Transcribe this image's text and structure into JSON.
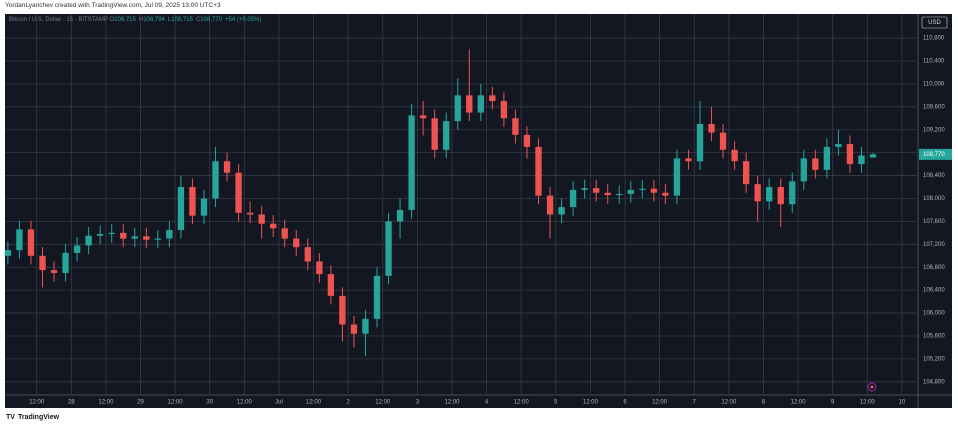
{
  "header": {
    "attribution": "YordanLyanchev created with TradingView.com, Jul 09, 2025 13:00 UTC+3",
    "symbol": "Bitcoin / U.S. Dollar · 15 · BITSTAMP",
    "ohlc": [
      {
        "key": "O",
        "value": "108,715"
      },
      {
        "key": "H",
        "value": "108,794"
      },
      {
        "key": "L",
        "value": "108,715"
      },
      {
        "key": "C",
        "value": "108,770"
      }
    ],
    "change": "+54 (+0.05%)",
    "currency": "USD"
  },
  "chart_data": {
    "type": "candlestick",
    "up_color": "#26a69a",
    "down_color": "#ef5350",
    "grid": true,
    "x": [
      2,
      6,
      10,
      14,
      18,
      22,
      26,
      30,
      34,
      38,
      42,
      46,
      50,
      54,
      58,
      62,
      66,
      70,
      74,
      78,
      82,
      86,
      90,
      94,
      98,
      102,
      106,
      110,
      114,
      118,
      122,
      126,
      130,
      134,
      138,
      142,
      146,
      150,
      154,
      158,
      162,
      166,
      170,
      174,
      178,
      182,
      186,
      190,
      194,
      198,
      202,
      206,
      210,
      214,
      218,
      222,
      226,
      230,
      234,
      238,
      242,
      246,
      250,
      254,
      258,
      262,
      266,
      270,
      274,
      278,
      282,
      286,
      290,
      294,
      298,
      302
    ],
    "open": [
      107000,
      107100,
      107460,
      107000,
      106750,
      106700,
      107050,
      107180,
      107350,
      107380,
      107400,
      107300,
      107340,
      107280,
      107300,
      107450,
      108200,
      107700,
      108000,
      108650,
      108450,
      107750,
      107720,
      107560,
      107480,
      107300,
      107150,
      106900,
      106680,
      106300,
      105800,
      105640,
      105900,
      106650,
      107600,
      107800,
      109450,
      109400,
      108850,
      109350,
      109800,
      109500,
      109800,
      109700,
      109400,
      109110,
      108900,
      108050,
      107720,
      107850,
      108150,
      108180,
      108100,
      108060,
      108080,
      108150,
      108170,
      108100,
      108050,
      108700,
      108650,
      109300,
      109150,
      108850,
      108650,
      108250,
      107950,
      108200,
      107900,
      108300,
      108700,
      108500,
      108900,
      108950,
      108600,
      108715
    ],
    "high": [
      107250,
      107610,
      107610,
      107150,
      106900,
      107200,
      107330,
      107500,
      107530,
      107550,
      107550,
      107490,
      107490,
      107450,
      107600,
      108400,
      108350,
      108150,
      108900,
      108800,
      108600,
      107950,
      107870,
      107710,
      107630,
      107450,
      107300,
      107050,
      106830,
      106450,
      105950,
      106050,
      106800,
      107750,
      108000,
      109650,
      109700,
      109550,
      109500,
      110100,
      110600,
      110000,
      109950,
      109850,
      109550,
      109260,
      109050,
      108200,
      108000,
      108300,
      108330,
      108330,
      108250,
      108230,
      108300,
      108320,
      108320,
      108250,
      108850,
      108850,
      109700,
      109600,
      109300,
      109000,
      108800,
      108400,
      108350,
      108350,
      108450,
      108850,
      108850,
      109050,
      109200,
      109100,
      108900,
      108794
    ],
    "low": [
      106850,
      106950,
      106850,
      106450,
      106550,
      106550,
      106900,
      107030,
      107200,
      107230,
      107150,
      107150,
      107130,
      107130,
      107150,
      107300,
      107550,
      107550,
      107850,
      108300,
      107600,
      107570,
      107300,
      107330,
      107150,
      107000,
      106750,
      106530,
      106150,
      105500,
      105400,
      105250,
      105750,
      106500,
      107300,
      107650,
      109100,
      108700,
      108700,
      109200,
      109350,
      109350,
      109550,
      109250,
      108960,
      108700,
      107900,
      107300,
      107570,
      107700,
      108000,
      107950,
      107910,
      107910,
      107930,
      108000,
      107950,
      107900,
      107900,
      108500,
      108500,
      109000,
      108700,
      108500,
      108100,
      107600,
      107800,
      107500,
      107750,
      108150,
      108350,
      108350,
      108750,
      108450,
      108450,
      108715
    ],
    "close": [
      107100,
      107460,
      107000,
      106750,
      106700,
      107050,
      107180,
      107350,
      107380,
      107400,
      107300,
      107340,
      107280,
      107300,
      107450,
      108200,
      107700,
      108000,
      108650,
      108450,
      107750,
      107720,
      107560,
      107480,
      107300,
      107150,
      106900,
      106680,
      106300,
      105800,
      105640,
      105900,
      106650,
      107600,
      107800,
      109450,
      109400,
      108850,
      109350,
      109800,
      109500,
      109800,
      109700,
      109400,
      109110,
      108900,
      108050,
      107720,
      107850,
      108150,
      108180,
      108100,
      108060,
      108080,
      108150,
      108170,
      108100,
      108050,
      108700,
      108650,
      109300,
      109150,
      108850,
      108650,
      108250,
      107950,
      108200,
      107900,
      108300,
      108700,
      108500,
      108900,
      108950,
      108600,
      108750,
      108770
    ],
    "xlim": [
      1,
      317.6
    ],
    "ylim": [
      104570,
      111220
    ],
    "xticks": [
      {
        "value": 12,
        "label": "12:00"
      },
      {
        "value": 24,
        "label": "28"
      },
      {
        "value": 36,
        "label": "12:00"
      },
      {
        "value": 48,
        "label": "29"
      },
      {
        "value": 60,
        "label": "12:00"
      },
      {
        "value": 72,
        "label": "30"
      },
      {
        "value": 84,
        "label": "12:00"
      },
      {
        "value": 96,
        "label": "Jul"
      },
      {
        "value": 108,
        "label": "12:00"
      },
      {
        "value": 120,
        "label": "2"
      },
      {
        "value": 132,
        "label": "12:00"
      },
      {
        "value": 144,
        "label": "3"
      },
      {
        "value": 156,
        "label": "12:00"
      },
      {
        "value": 168,
        "label": "4"
      },
      {
        "value": 180,
        "label": "12:00"
      },
      {
        "value": 192,
        "label": "5"
      },
      {
        "value": 204,
        "label": "12:00"
      },
      {
        "value": 216,
        "label": "6"
      },
      {
        "value": 228,
        "label": "12:00"
      },
      {
        "value": 240,
        "label": "7"
      },
      {
        "value": 252,
        "label": "12:00"
      },
      {
        "value": 264,
        "label": "8"
      },
      {
        "value": 276,
        "label": "12:00"
      },
      {
        "value": 288,
        "label": "9"
      },
      {
        "value": 300,
        "label": "12:00"
      },
      {
        "value": 312,
        "label": "10"
      }
    ],
    "yticks": [
      {
        "value": 104800,
        "label": "104,800"
      },
      {
        "value": 105200,
        "label": "105,200"
      },
      {
        "value": 105600,
        "label": "105,600"
      },
      {
        "value": 106000,
        "label": "106,000"
      },
      {
        "value": 106400,
        "label": "106,400"
      },
      {
        "value": 106800,
        "label": "106,800"
      },
      {
        "value": 107200,
        "label": "107,200"
      },
      {
        "value": 107600,
        "label": "107,600"
      },
      {
        "value": 108000,
        "label": "108,000"
      },
      {
        "value": 108400,
        "label": "108,400"
      },
      {
        "value": 108800,
        "label": "108,800"
      },
      {
        "value": 109200,
        "label": "109,200"
      },
      {
        "value": 109600,
        "label": "109,600"
      },
      {
        "value": 110000,
        "label": "110,000"
      },
      {
        "value": 110400,
        "label": "110,400"
      },
      {
        "value": 110800,
        "label": "110,800"
      }
    ],
    "price_tag": {
      "value": 108770,
      "label": "108,770"
    }
  },
  "footer": {
    "brand": "TradingView"
  }
}
